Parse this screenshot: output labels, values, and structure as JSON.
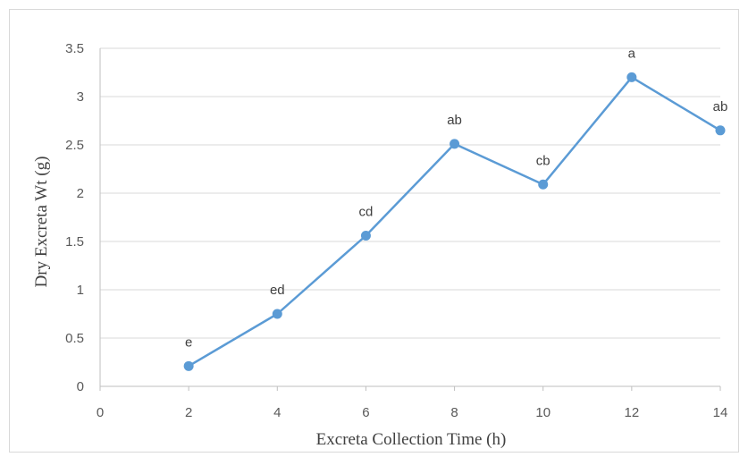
{
  "chart_data": {
    "type": "line",
    "title": "",
    "xlabel": "Excreta Collection Time (h)",
    "ylabel": "Dry Excreta Wt (g)",
    "xlim": [
      0,
      14
    ],
    "ylim": [
      0,
      3.5
    ],
    "x_ticks": [
      "0",
      "2",
      "4",
      "6",
      "8",
      "10",
      "12",
      "14"
    ],
    "y_ticks": [
      "0",
      "0.5",
      "1",
      "1.5",
      "2",
      "2.5",
      "3",
      "3.5"
    ],
    "grid": "horizontal",
    "legend": "none",
    "series": [
      {
        "x": [
          2,
          4,
          6,
          8,
          10,
          12,
          14
        ],
        "values": [
          0.21,
          0.75,
          1.56,
          2.51,
          2.09,
          3.2,
          2.65
        ],
        "labels": [
          "e",
          "ed",
          "cd",
          "ab",
          "cb",
          "a",
          "ab"
        ],
        "color": "#5b9bd5"
      }
    ],
    "colors": {
      "line": "#5b9bd5",
      "grid": "#d9d9d9",
      "axis": "#bfbfbf"
    }
  }
}
